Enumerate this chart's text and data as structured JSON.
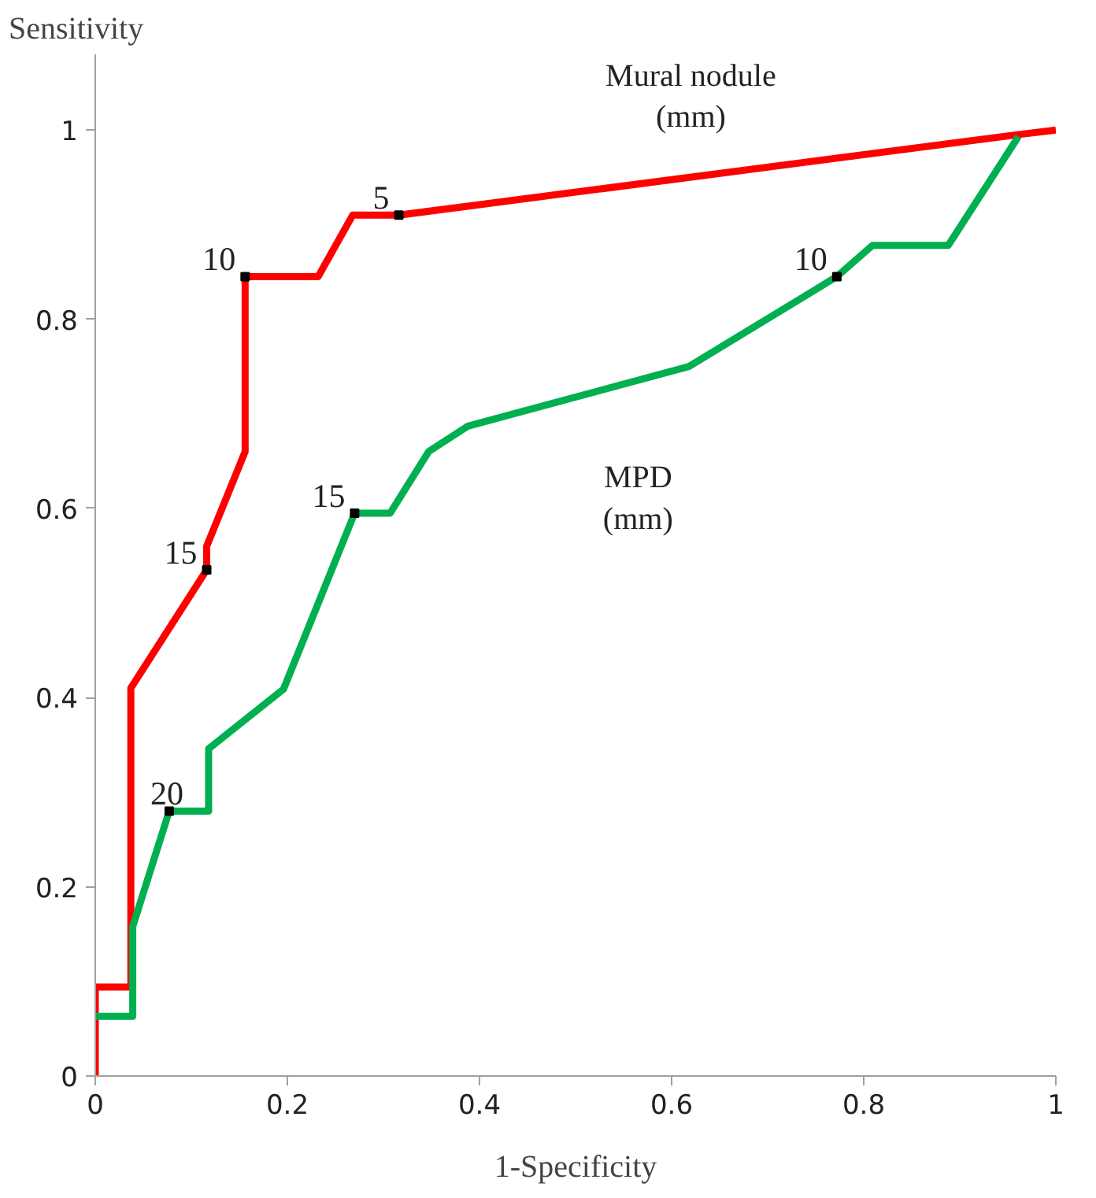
{
  "chart_data": {
    "type": "line",
    "xlabel": "1-Specificity",
    "ylabel": "Sensitivity",
    "xlim": [
      0,
      1
    ],
    "ylim": [
      0,
      1.08
    ],
    "xticks": [
      0,
      0.2,
      0.4,
      0.6,
      0.8,
      1
    ],
    "yticks": [
      0,
      0.2,
      0.4,
      0.6,
      0.8,
      1
    ],
    "grid": false,
    "legend": false,
    "marker": "none",
    "line_style": "solid",
    "series": [
      {
        "name": "Mural nodule\n(mm)",
        "color": "#ff0000",
        "x": [
          0,
          0,
          0.037,
          0.037,
          0.116,
          0.116,
          0.156,
          0.156,
          0.232,
          0.268,
          0.316,
          0.96,
          1
        ],
        "values": [
          0,
          0.094,
          0.094,
          0.41,
          0.535,
          0.56,
          0.66,
          0.845,
          0.845,
          0.91,
          0.91,
          0.995,
          1
        ]
      },
      {
        "name": "MPD\n(mm)",
        "color": "#00b050",
        "x": [
          0,
          0.039,
          0.039,
          0.077,
          0.118,
          0.118,
          0.196,
          0.27,
          0.307,
          0.347,
          0.388,
          0.618,
          0.772,
          0.809,
          0.888,
          0.961
        ],
        "values": [
          0.063,
          0.063,
          0.158,
          0.28,
          0.28,
          0.346,
          0.409,
          0.595,
          0.595,
          0.66,
          0.687,
          0.75,
          0.845,
          0.878,
          0.878,
          0.993
        ]
      }
    ],
    "annotations": [
      {
        "text": "5",
        "x": 0.316,
        "y": 0.91
      },
      {
        "text": "10",
        "x": 0.156,
        "y": 0.845
      },
      {
        "text": "15",
        "x": 0.116,
        "y": 0.535
      },
      {
        "text": "15",
        "x": 0.27,
        "y": 0.595
      },
      {
        "text": "20",
        "x": 0.077,
        "y": 0.28
      },
      {
        "text": "10",
        "x": 0.772,
        "y": 0.845
      }
    ]
  }
}
